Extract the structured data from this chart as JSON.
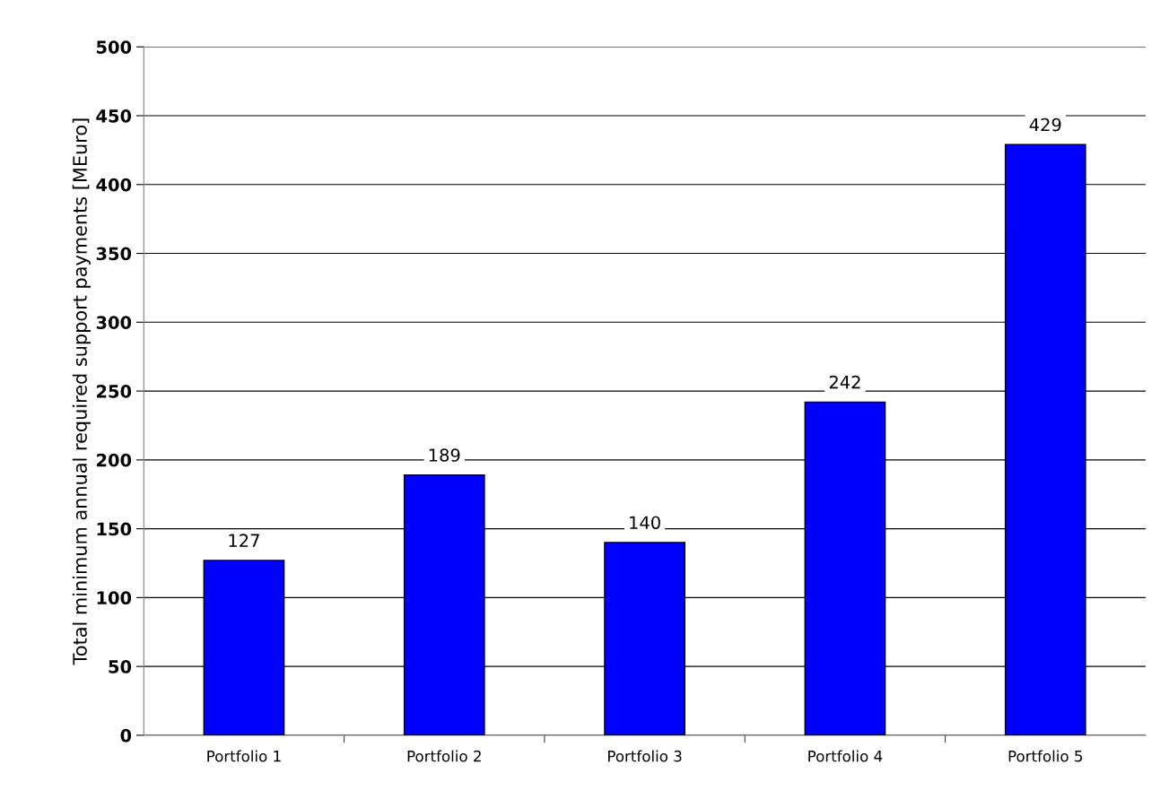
{
  "chart_data": {
    "type": "bar",
    "ylabel": "Total minimum annual required support payments [MEuro]",
    "categories": [
      "Portfolio 1",
      "Portfolio 2",
      "Portfolio 3",
      "Portfolio 4",
      "Portfolio 5"
    ],
    "values": [
      127,
      189,
      140,
      242,
      429
    ],
    "color": "#0000ff",
    "ylim": [
      0,
      500
    ],
    "yticks": [
      0,
      50,
      100,
      150,
      200,
      250,
      300,
      350,
      400,
      450,
      500
    ],
    "grid": "y",
    "data_labels": true,
    "legend": false
  }
}
